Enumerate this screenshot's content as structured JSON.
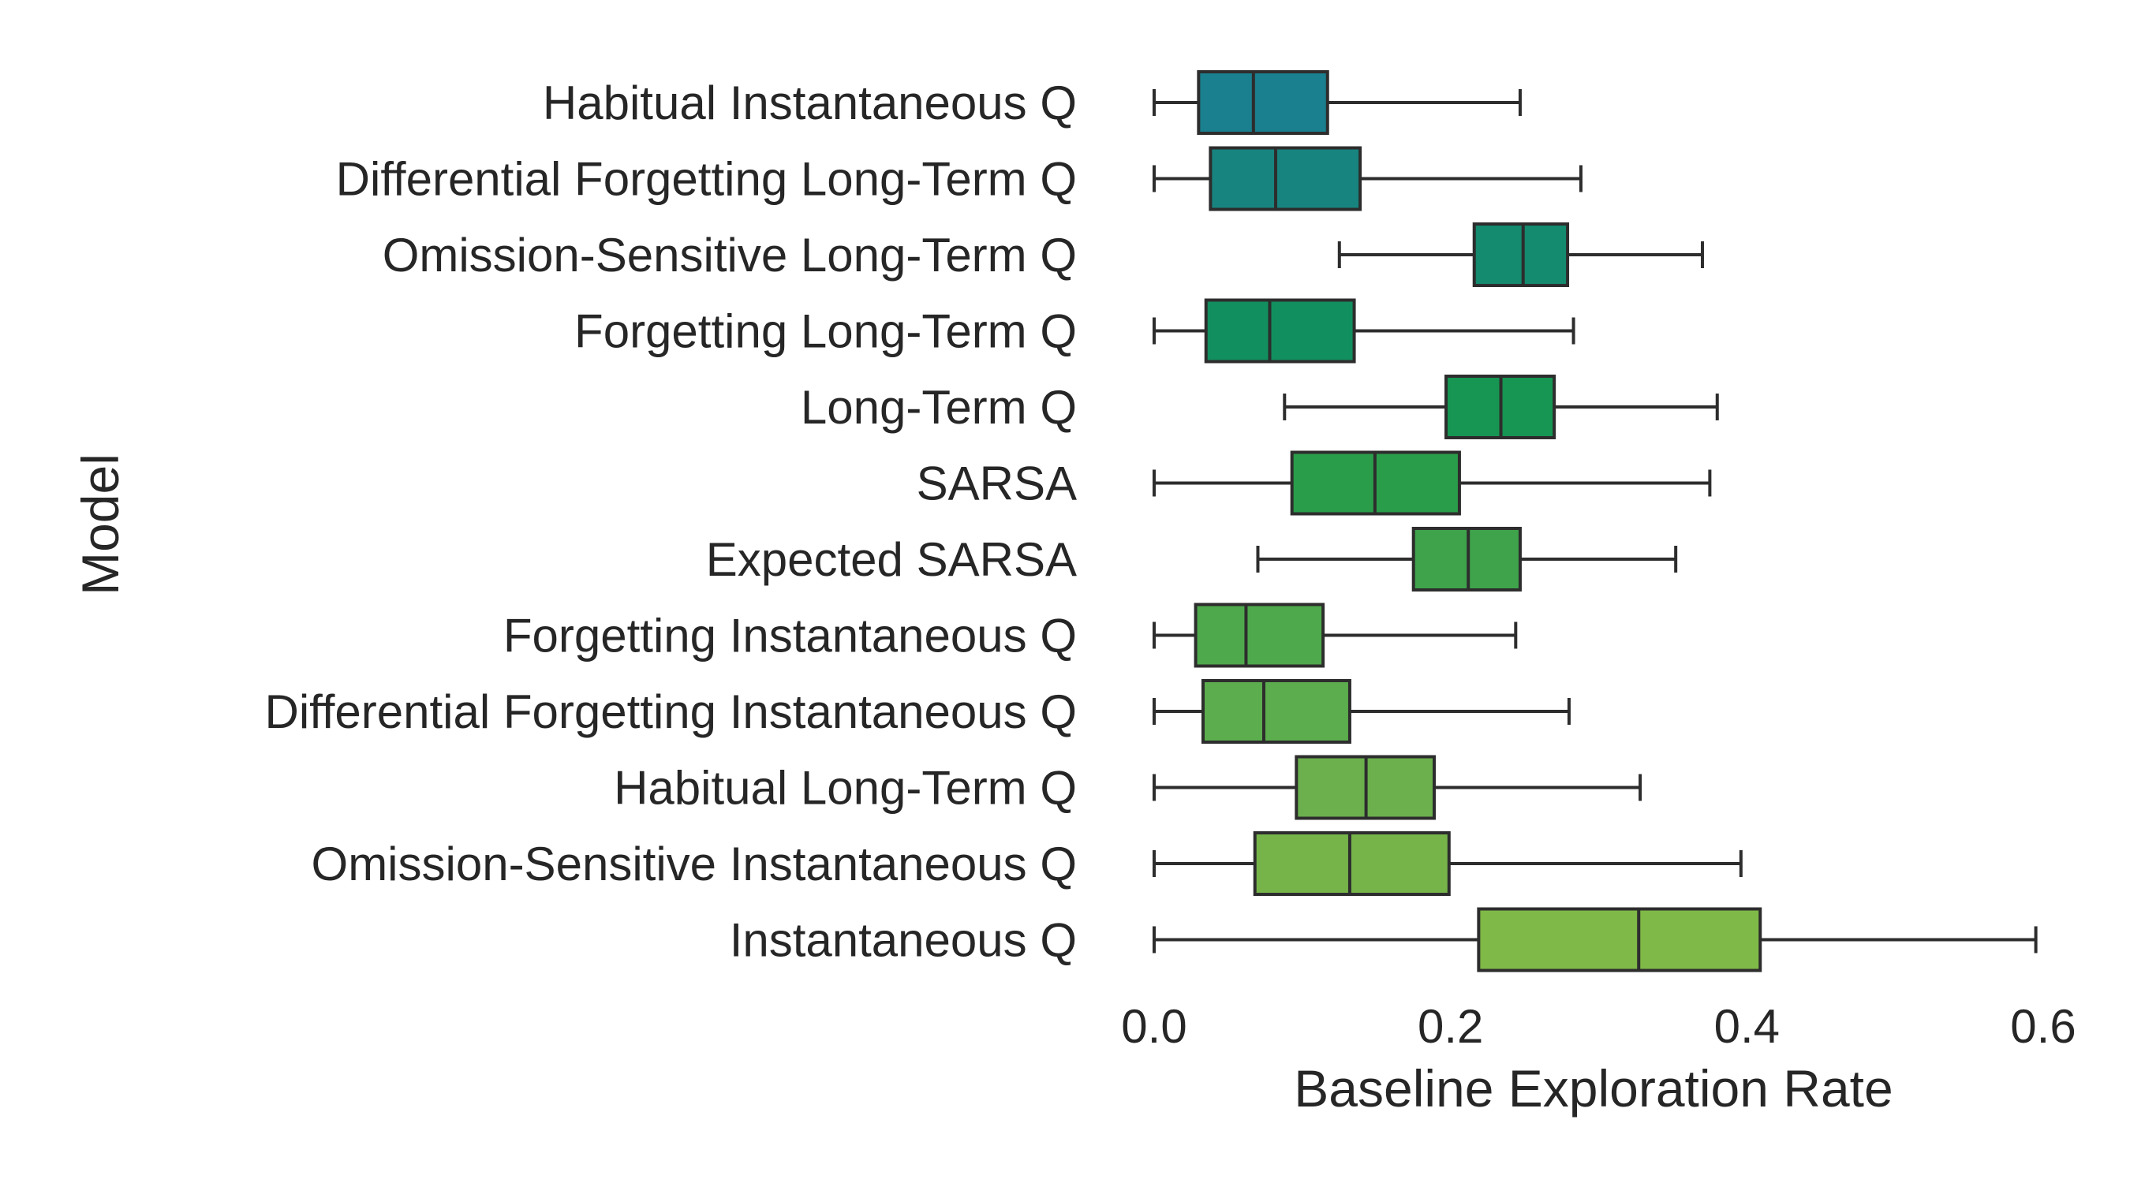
{
  "chart_data": {
    "type": "boxplot",
    "orientation": "horizontal",
    "xlabel": "Baseline Exploration Rate",
    "ylabel": "Model",
    "xlim": [
      0.0,
      0.6
    ],
    "xticks": [
      0.0,
      0.2,
      0.4,
      0.6
    ],
    "xtick_labels": [
      "0.0",
      "0.2",
      "0.4",
      "0.6"
    ],
    "grid": false,
    "categories": [
      "Habitual Instantaneous Q",
      "Differential Forgetting Long-Term Q",
      "Omission-Sensitive Long-Term Q",
      "Forgetting Long-Term Q",
      "Long-Term Q",
      "SARSA",
      "Expected SARSA",
      "Forgetting Instantaneous Q",
      "Differential Forgetting Instantaneous Q",
      "Habitual Long-Term Q",
      "Omission-Sensitive Instantaneous Q",
      "Instantaneous Q"
    ],
    "boxes": [
      {
        "whisker_low": 0.0,
        "q1": 0.03,
        "median": 0.067,
        "q3": 0.117,
        "whisker_high": 0.247,
        "color": "#1a7f8e"
      },
      {
        "whisker_low": 0.0,
        "q1": 0.038,
        "median": 0.082,
        "q3": 0.139,
        "whisker_high": 0.288,
        "color": "#18847f"
      },
      {
        "whisker_low": 0.125,
        "q1": 0.216,
        "median": 0.249,
        "q3": 0.279,
        "whisker_high": 0.37,
        "color": "#148a6e"
      },
      {
        "whisker_low": 0.0,
        "q1": 0.035,
        "median": 0.078,
        "q3": 0.135,
        "whisker_high": 0.283,
        "color": "#128f5e"
      },
      {
        "whisker_low": 0.088,
        "q1": 0.197,
        "median": 0.234,
        "q3": 0.27,
        "whisker_high": 0.38,
        "color": "#169652"
      },
      {
        "whisker_low": 0.0,
        "q1": 0.093,
        "median": 0.149,
        "q3": 0.206,
        "whisker_high": 0.375,
        "color": "#2a9d4b"
      },
      {
        "whisker_low": 0.07,
        "q1": 0.175,
        "median": 0.212,
        "q3": 0.247,
        "whisker_high": 0.352,
        "color": "#3ea34b"
      },
      {
        "whisker_low": 0.0,
        "q1": 0.028,
        "median": 0.062,
        "q3": 0.114,
        "whisker_high": 0.244,
        "color": "#4ea94c"
      },
      {
        "whisker_low": 0.0,
        "q1": 0.033,
        "median": 0.074,
        "q3": 0.132,
        "whisker_high": 0.28,
        "color": "#5cad4d"
      },
      {
        "whisker_low": 0.0,
        "q1": 0.096,
        "median": 0.143,
        "q3": 0.189,
        "whisker_high": 0.328,
        "color": "#6bb04d"
      },
      {
        "whisker_low": 0.0,
        "q1": 0.068,
        "median": 0.132,
        "q3": 0.199,
        "whisker_high": 0.396,
        "color": "#76b44a"
      },
      {
        "whisker_low": 0.0,
        "q1": 0.219,
        "median": 0.327,
        "q3": 0.409,
        "whisker_high": 0.595,
        "color": "#7fb947"
      }
    ]
  }
}
